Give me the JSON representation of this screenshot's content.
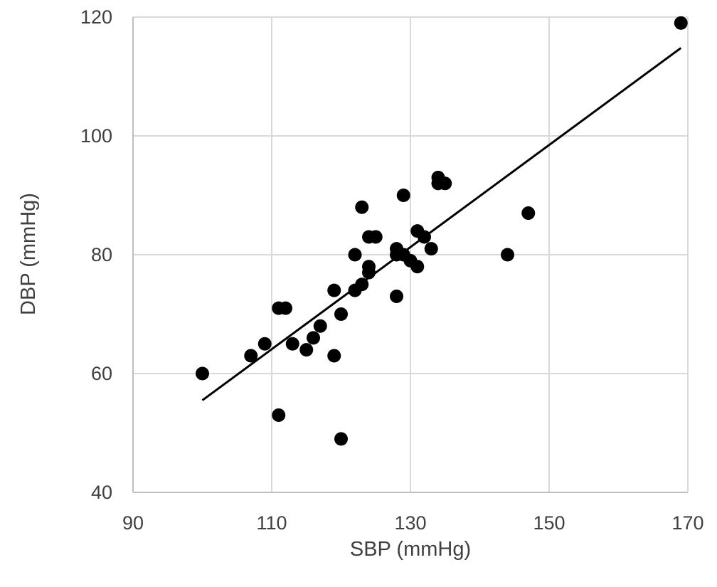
{
  "chart_data": {
    "type": "scatter",
    "title": "",
    "xlabel": "SBP (mmHg)",
    "ylabel": "DBP (mmHg)",
    "xlim": [
      90,
      170
    ],
    "ylim": [
      40,
      120
    ],
    "x_ticks": [
      90,
      110,
      130,
      150,
      170
    ],
    "y_ticks": [
      40,
      60,
      80,
      100,
      120
    ],
    "grid": true,
    "legend": "none",
    "point_color": "#000000",
    "gridline_color": "#d9d9d9",
    "points": [
      {
        "x": 100,
        "y": 60
      },
      {
        "x": 107,
        "y": 63
      },
      {
        "x": 109,
        "y": 65
      },
      {
        "x": 111,
        "y": 53
      },
      {
        "x": 111,
        "y": 71
      },
      {
        "x": 112,
        "y": 71
      },
      {
        "x": 113,
        "y": 65
      },
      {
        "x": 115,
        "y": 64
      },
      {
        "x": 116,
        "y": 66
      },
      {
        "x": 117,
        "y": 68
      },
      {
        "x": 119,
        "y": 74
      },
      {
        "x": 119,
        "y": 63
      },
      {
        "x": 120,
        "y": 70
      },
      {
        "x": 120,
        "y": 49
      },
      {
        "x": 122,
        "y": 80
      },
      {
        "x": 122,
        "y": 74
      },
      {
        "x": 123,
        "y": 75
      },
      {
        "x": 123,
        "y": 88
      },
      {
        "x": 124,
        "y": 83
      },
      {
        "x": 124,
        "y": 78
      },
      {
        "x": 124,
        "y": 77
      },
      {
        "x": 125,
        "y": 83
      },
      {
        "x": 128,
        "y": 81
      },
      {
        "x": 128,
        "y": 80
      },
      {
        "x": 128,
        "y": 73
      },
      {
        "x": 129,
        "y": 90
      },
      {
        "x": 129,
        "y": 80
      },
      {
        "x": 130,
        "y": 79
      },
      {
        "x": 131,
        "y": 84
      },
      {
        "x": 131,
        "y": 78
      },
      {
        "x": 132,
        "y": 83
      },
      {
        "x": 133,
        "y": 81
      },
      {
        "x": 134,
        "y": 93
      },
      {
        "x": 134,
        "y": 92
      },
      {
        "x": 135,
        "y": 92
      },
      {
        "x": 144,
        "y": 80
      },
      {
        "x": 147,
        "y": 87
      },
      {
        "x": 169,
        "y": 119
      }
    ],
    "trendline": {
      "x": [
        100,
        169
      ],
      "y": [
        55.5,
        114.8
      ]
    }
  }
}
